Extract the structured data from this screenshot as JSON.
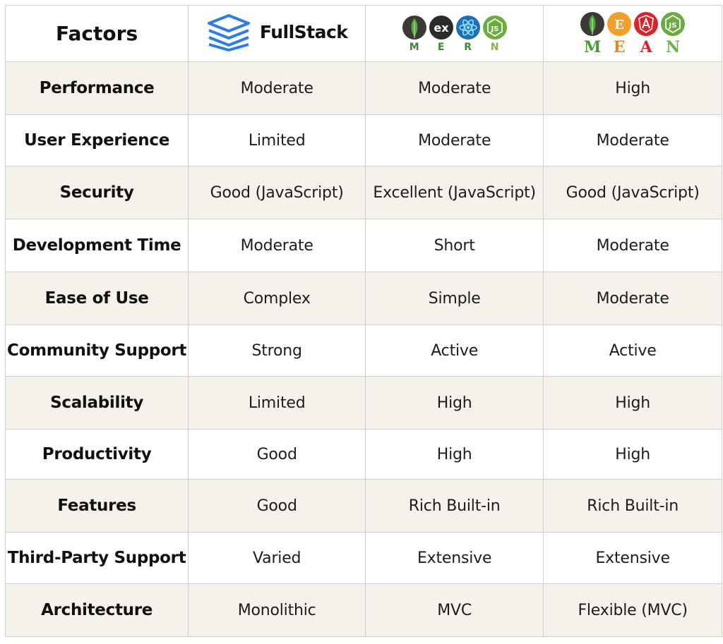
{
  "header": {
    "factors_label": "Factors",
    "fullstack": {
      "label": "FullStack",
      "icon": "layers-icon",
      "color": "#2f7de1"
    },
    "mern": {
      "icons": [
        "mongodb-icon",
        "express-icon",
        "react-icon",
        "nodejs-icon"
      ],
      "express_text": "ex",
      "letters": [
        "M",
        "E",
        "R",
        "N"
      ],
      "letter_colors": [
        "#3a8a2e",
        "#3a8a2e",
        "#3a8a2e",
        "#7bb54a"
      ]
    },
    "mean": {
      "icons": [
        "mongodb-icon",
        "express-icon",
        "angular-icon",
        "nodejs-icon"
      ],
      "express_text": "E",
      "letters": [
        "M",
        "E",
        "A",
        "N"
      ],
      "letter_colors": [
        "#4a9a3a",
        "#e58a1f",
        "#d8232a",
        "#6fb14a"
      ]
    }
  },
  "rows": [
    {
      "factor": "Performance",
      "fullstack": "Moderate",
      "mern": "Moderate",
      "mean": "High"
    },
    {
      "factor": "User Experience",
      "fullstack": "Limited",
      "mern": "Moderate",
      "mean": "Moderate"
    },
    {
      "factor": "Security",
      "fullstack": "Good (JavaScript)",
      "mern": "Excellent (JavaScript)",
      "mean": "Good (JavaScript)"
    },
    {
      "factor": "Development Time",
      "fullstack": "Moderate",
      "mern": "Short",
      "mean": "Moderate"
    },
    {
      "factor": "Ease of Use",
      "fullstack": "Complex",
      "mern": "Simple",
      "mean": "Moderate"
    },
    {
      "factor": "Community Support",
      "fullstack": "Strong",
      "mern": "Active",
      "mean": "Active"
    },
    {
      "factor": "Scalability",
      "fullstack": "Limited",
      "mern": "High",
      "mean": "High"
    },
    {
      "factor": "Productivity",
      "fullstack": "Good",
      "mern": "High",
      "mean": "High"
    },
    {
      "factor": "Features",
      "fullstack": "Good",
      "mern": "Rich Built-in",
      "mean": "Rich Built-in"
    },
    {
      "factor": "Third-Party Support",
      "fullstack": "Varied",
      "mern": "Extensive",
      "mean": "Extensive"
    },
    {
      "factor": "Architecture",
      "fullstack": "Monolithic",
      "mern": "MVC",
      "mean": "Flexible (MVC)"
    }
  ],
  "colors": {
    "shaded_row": "#f4f2eb",
    "plain_row": "#ffffff",
    "border": "#cfcfcf"
  }
}
